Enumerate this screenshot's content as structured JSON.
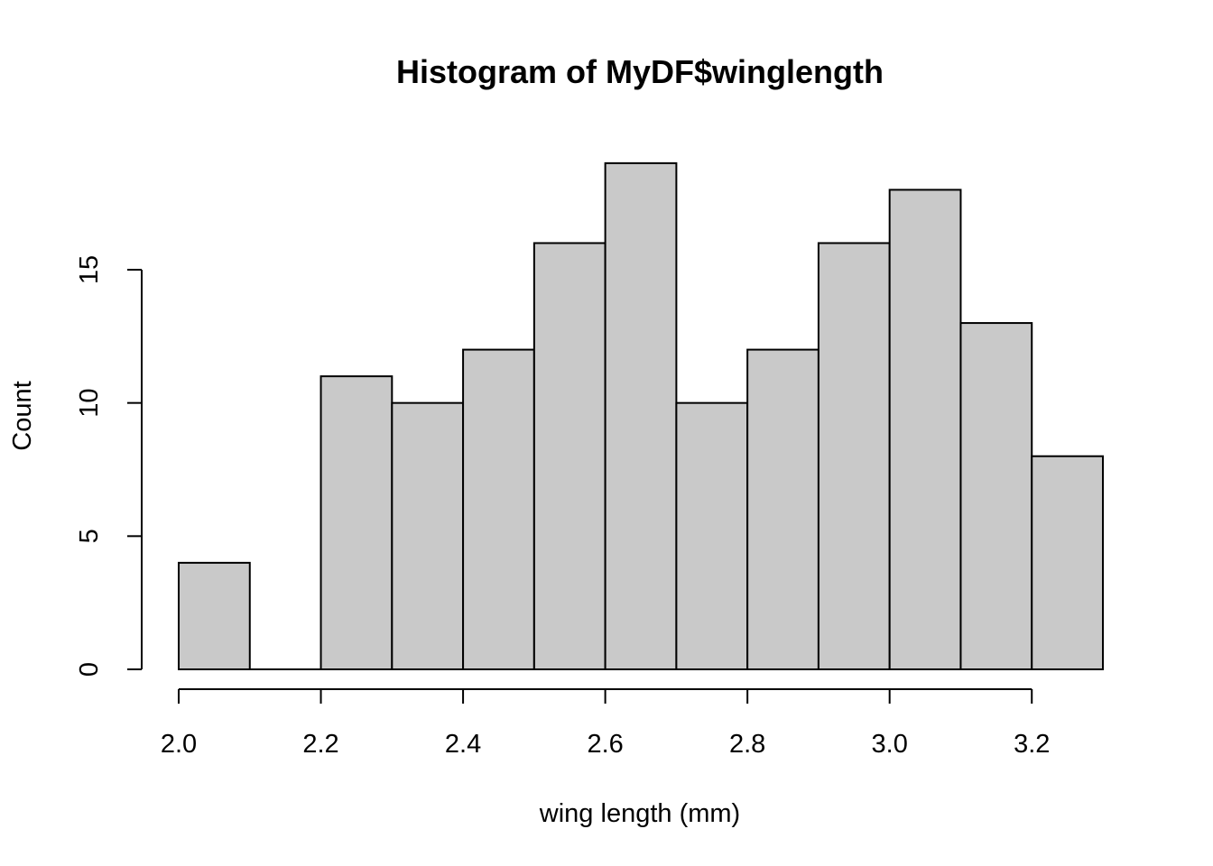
{
  "chart_data": {
    "type": "bar",
    "subtype": "histogram",
    "title": "Histogram of MyDF$winglength",
    "xlabel": "wing length (mm)",
    "ylabel": "Count",
    "bins": [
      {
        "start": 2.0,
        "end": 2.1,
        "count": 4
      },
      {
        "start": 2.1,
        "end": 2.2,
        "count": 0
      },
      {
        "start": 2.2,
        "end": 2.3,
        "count": 11
      },
      {
        "start": 2.3,
        "end": 2.4,
        "count": 10
      },
      {
        "start": 2.4,
        "end": 2.5,
        "count": 12
      },
      {
        "start": 2.5,
        "end": 2.6,
        "count": 16
      },
      {
        "start": 2.6,
        "end": 2.7,
        "count": 19
      },
      {
        "start": 2.7,
        "end": 2.8,
        "count": 10
      },
      {
        "start": 2.8,
        "end": 2.9,
        "count": 12
      },
      {
        "start": 2.9,
        "end": 3.0,
        "count": 16
      },
      {
        "start": 3.0,
        "end": 3.1,
        "count": 18
      },
      {
        "start": 3.1,
        "end": 3.2,
        "count": 13
      },
      {
        "start": 3.2,
        "end": 3.3,
        "count": 8
      }
    ],
    "xlim": [
      2.0,
      3.3
    ],
    "ylim": [
      0,
      19
    ],
    "x_ticks": [
      "2.0",
      "2.2",
      "2.4",
      "2.6",
      "2.8",
      "3.0",
      "3.2"
    ],
    "y_ticks": [
      "0",
      "5",
      "10",
      "15"
    ],
    "bar_color": "#c9c9c9",
    "edge_color": "#000000",
    "grid": false,
    "legend": "none"
  }
}
